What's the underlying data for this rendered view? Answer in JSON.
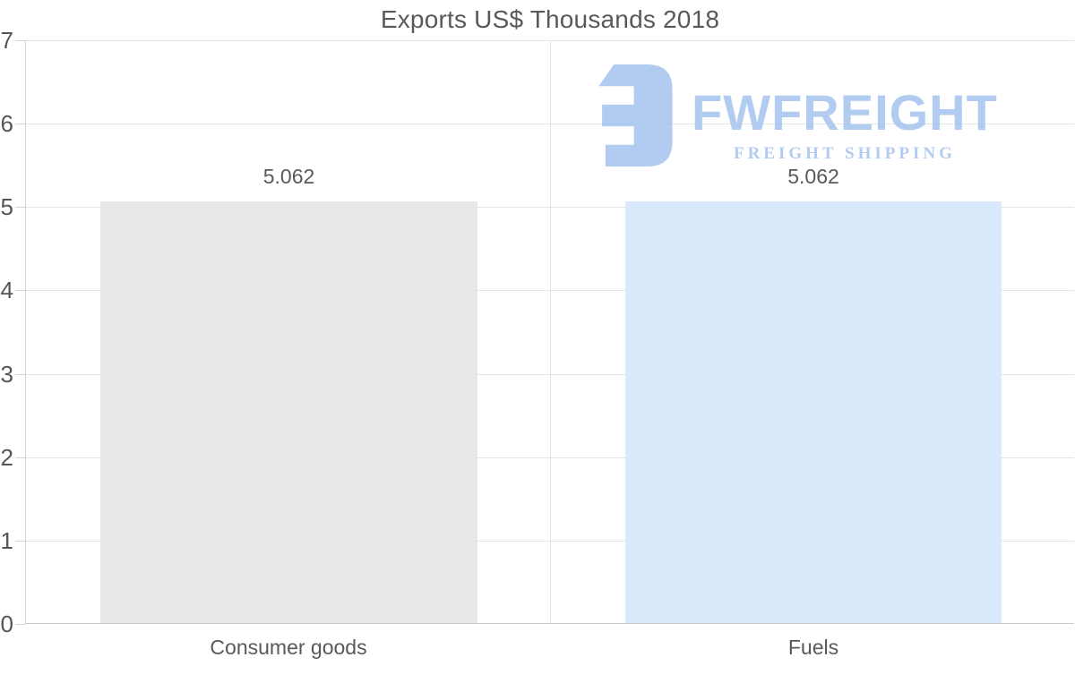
{
  "chart_data": {
    "type": "bar",
    "title": "Exports US$ Thousands 2018",
    "categories": [
      "Consumer goods",
      "Fuels"
    ],
    "values": [
      5.062,
      5.062
    ],
    "value_labels": [
      "5.062",
      "5.062"
    ],
    "bar_colors": [
      "#e8e8e8",
      "#d9e8fb"
    ],
    "xlabel": "",
    "ylabel": "",
    "ylim": [
      0,
      7
    ],
    "yticks": [
      0,
      1,
      2,
      3,
      4,
      5,
      6,
      7
    ],
    "grid": "horizontal gridlines at each integer, vertical divider between categories",
    "legend": "none"
  },
  "watermark": {
    "name": "FWFREIGHT",
    "tagline": "FREIGHT SHIPPING",
    "color": "#a5c4ef"
  },
  "colors": {
    "background": "#ffffff",
    "text": "#595959",
    "gridline": "#e4e4e4",
    "axis": "#c9c9c9"
  }
}
